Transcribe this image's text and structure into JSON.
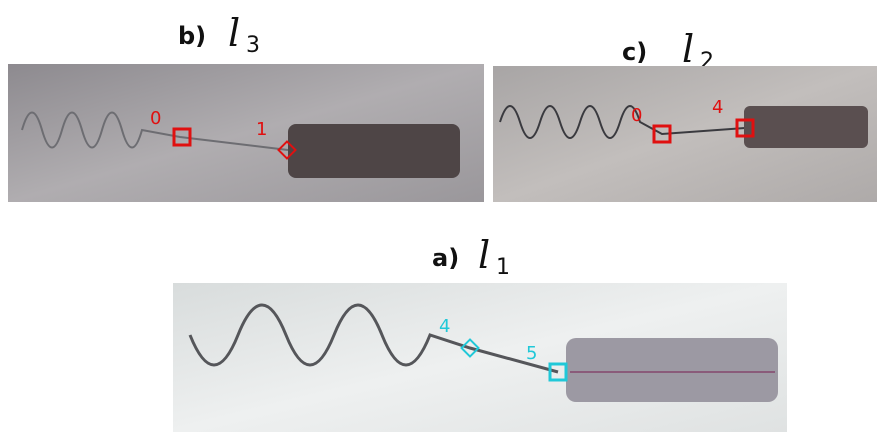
{
  "panels": [
    {
      "label": "b)",
      "symbol": "l",
      "subscript": "3",
      "markers": [
        {
          "label": "0"
        },
        {
          "label": "1"
        }
      ]
    },
    {
      "label": "c)",
      "symbol": "l",
      "subscript": "2",
      "markers": [
        {
          "label": "0"
        },
        {
          "label": "4"
        }
      ]
    },
    {
      "label": "a)",
      "symbol": "l",
      "subscript": "1",
      "markers": [
        {
          "label": "4"
        },
        {
          "label": "5"
        }
      ]
    }
  ]
}
